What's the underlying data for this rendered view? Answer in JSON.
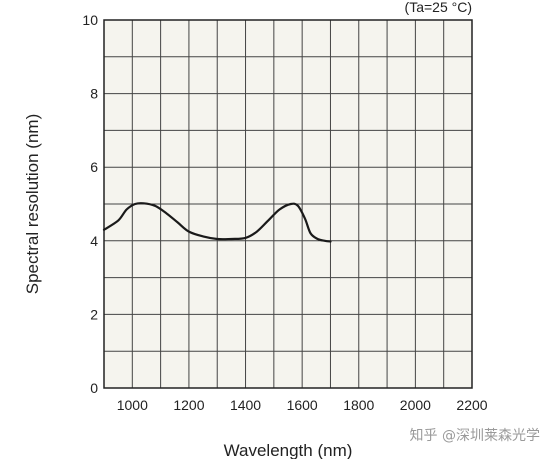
{
  "chart_data": {
    "type": "line",
    "annotation": "(Ta=25 °C)",
    "xlabel": "Wavelength (nm)",
    "ylabel": "Spectral resolution (nm)",
    "xlim": [
      900,
      2200
    ],
    "ylim": [
      0,
      10
    ],
    "xticks": [
      1000,
      1200,
      1400,
      1600,
      1800,
      2000,
      2200
    ],
    "yticks": [
      0,
      2,
      4,
      6,
      8,
      10
    ],
    "grid": true,
    "background": "#f5f4ee",
    "line_color": "#1a1a1a",
    "series": [
      {
        "x": [
          900,
          950,
          980,
          1010,
          1040,
          1080,
          1120,
          1160,
          1200,
          1250,
          1300,
          1350,
          1400,
          1440,
          1480,
          1520,
          1560,
          1585,
          1610,
          1630,
          1655,
          1680,
          1700
        ],
        "y": [
          4.3,
          4.55,
          4.85,
          5.0,
          5.02,
          4.95,
          4.75,
          4.5,
          4.25,
          4.12,
          4.05,
          4.05,
          4.08,
          4.25,
          4.55,
          4.85,
          5.0,
          4.95,
          4.6,
          4.2,
          4.05,
          4.0,
          3.98
        ]
      }
    ]
  },
  "watermark": "知乎 @深圳莱森光学"
}
